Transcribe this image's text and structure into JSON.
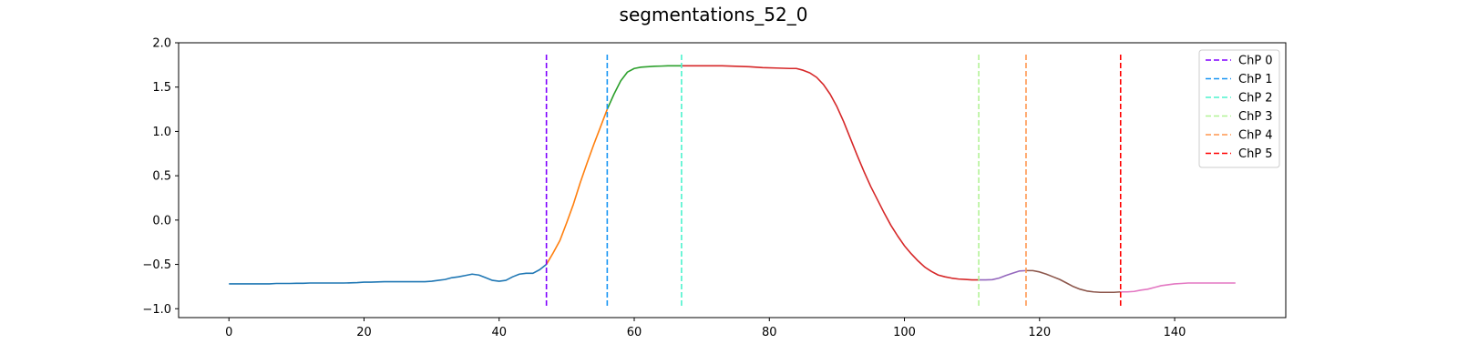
{
  "chart_data": {
    "type": "line",
    "title": "segmentations_52_0",
    "xlabel": "",
    "ylabel": "",
    "xlim": [
      -7.45,
      156.45
    ],
    "ylim": [
      -1.1,
      2.0
    ],
    "xticks": [
      0,
      20,
      40,
      60,
      80,
      100,
      120,
      140
    ],
    "yticks": [
      -1.0,
      -0.5,
      0.0,
      0.5,
      1.0,
      1.5,
      2.0
    ],
    "xtick_labels": [
      "0",
      "20",
      "40",
      "60",
      "80",
      "100",
      "120",
      "140"
    ],
    "ytick_labels": [
      "−1.0",
      "−0.5",
      "0.0",
      "0.5",
      "1.0",
      "1.5",
      "2.0"
    ],
    "grid": false,
    "legend_position": "top-right",
    "segments": [
      {
        "color": "#1f77b4",
        "x": [
          0,
          1,
          2,
          3,
          4,
          5,
          6,
          7,
          8,
          9,
          10,
          11,
          12,
          13,
          14,
          15,
          16,
          17,
          18,
          19,
          20,
          21,
          22,
          23,
          24,
          25,
          26,
          27,
          28,
          29,
          30,
          31,
          32,
          33,
          34,
          35,
          36,
          37,
          38,
          39,
          40,
          41,
          42,
          43,
          44,
          45,
          46,
          47
        ],
        "y": [
          -0.72,
          -0.72,
          -0.72,
          -0.72,
          -0.72,
          -0.72,
          -0.72,
          -0.715,
          -0.715,
          -0.715,
          -0.713,
          -0.713,
          -0.71,
          -0.71,
          -0.71,
          -0.71,
          -0.71,
          -0.71,
          -0.708,
          -0.705,
          -0.7,
          -0.7,
          -0.698,
          -0.695,
          -0.695,
          -0.695,
          -0.695,
          -0.695,
          -0.695,
          -0.695,
          -0.69,
          -0.68,
          -0.67,
          -0.65,
          -0.64,
          -0.625,
          -0.61,
          -0.62,
          -0.65,
          -0.68,
          -0.69,
          -0.68,
          -0.64,
          -0.61,
          -0.6,
          -0.6,
          -0.56,
          -0.5
        ]
      },
      {
        "color": "#ff7f0e",
        "x": [
          47,
          48,
          49,
          50,
          51,
          52,
          53,
          54,
          55,
          56
        ],
        "y": [
          -0.5,
          -0.37,
          -0.23,
          -0.03,
          0.18,
          0.42,
          0.64,
          0.85,
          1.05,
          1.25
        ]
      },
      {
        "color": "#2ca02c",
        "x": [
          56,
          57,
          58,
          59,
          60,
          61,
          62,
          63,
          64,
          65,
          66,
          67
        ],
        "y": [
          1.25,
          1.42,
          1.57,
          1.67,
          1.71,
          1.725,
          1.73,
          1.735,
          1.737,
          1.74,
          1.74,
          1.74
        ]
      },
      {
        "color": "#d62728",
        "x": [
          67,
          69,
          71,
          73,
          75,
          77,
          79,
          81,
          83,
          84,
          85,
          86,
          87,
          88,
          89,
          90,
          91,
          92,
          93,
          94,
          95,
          96,
          97,
          98,
          99,
          100,
          101,
          102,
          103,
          104,
          105,
          106,
          107,
          108,
          109,
          110,
          111
        ],
        "y": [
          1.74,
          1.74,
          1.74,
          1.74,
          1.735,
          1.73,
          1.72,
          1.715,
          1.71,
          1.71,
          1.69,
          1.66,
          1.61,
          1.53,
          1.42,
          1.28,
          1.11,
          0.92,
          0.73,
          0.55,
          0.38,
          0.23,
          0.08,
          -0.06,
          -0.18,
          -0.29,
          -0.38,
          -0.46,
          -0.53,
          -0.58,
          -0.62,
          -0.64,
          -0.655,
          -0.665,
          -0.67,
          -0.675,
          -0.675
        ]
      },
      {
        "color": "#9467bd",
        "x": [
          111,
          112,
          113,
          114,
          115,
          116,
          117,
          118
        ],
        "y": [
          -0.675,
          -0.675,
          -0.672,
          -0.655,
          -0.625,
          -0.6,
          -0.575,
          -0.57
        ]
      },
      {
        "color": "#8c564b",
        "x": [
          118,
          119,
          120,
          121,
          122,
          123,
          124,
          125,
          126,
          127,
          128,
          129,
          130,
          131,
          132
        ],
        "y": [
          -0.57,
          -0.57,
          -0.585,
          -0.61,
          -0.64,
          -0.67,
          -0.71,
          -0.75,
          -0.78,
          -0.8,
          -0.81,
          -0.815,
          -0.815,
          -0.815,
          -0.81
        ]
      },
      {
        "color": "#e377c2",
        "x": [
          132,
          133,
          134,
          135,
          136,
          137,
          138,
          139,
          140,
          141,
          142,
          143,
          144,
          145,
          146,
          147,
          148,
          149
        ],
        "y": [
          -0.81,
          -0.81,
          -0.805,
          -0.79,
          -0.78,
          -0.76,
          -0.74,
          -0.73,
          -0.72,
          -0.715,
          -0.71,
          -0.71,
          -0.71,
          -0.71,
          -0.71,
          -0.71,
          -0.71,
          -0.71
        ]
      }
    ],
    "changepoints": [
      {
        "name": "ChP 0",
        "x": 47,
        "color": "#8000ff"
      },
      {
        "name": "ChP 1",
        "x": 56,
        "color": "#1996f3"
      },
      {
        "name": "ChP 2",
        "x": 67,
        "color": "#4df3ce"
      },
      {
        "name": "ChP 3",
        "x": 111,
        "color": "#b2f396"
      },
      {
        "name": "ChP 4",
        "x": 118,
        "color": "#ff964f"
      },
      {
        "name": "ChP 5",
        "x": 132,
        "color": "#ff0000"
      }
    ]
  }
}
